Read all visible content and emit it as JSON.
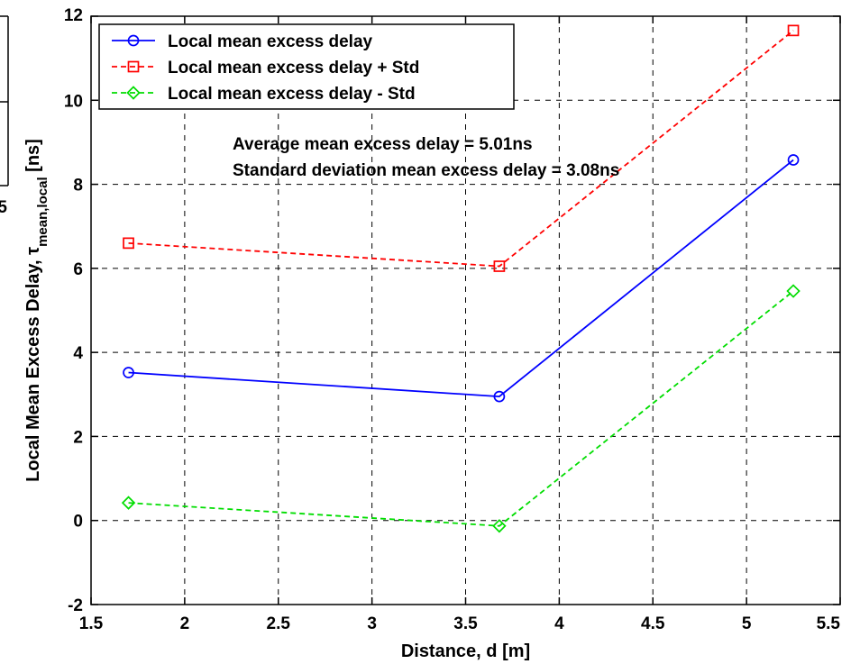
{
  "chart_data": {
    "type": "line",
    "title": "",
    "xlabel": "Distance, d [m]",
    "ylabel_main": "Local Mean Excess Delay,  τ",
    "ylabel_sub": "mean,local",
    "ylabel_unit": " [ns]",
    "xlim": [
      1.5,
      5.5
    ],
    "ylim": [
      -2,
      12
    ],
    "grid": true,
    "legend_position": "top-left",
    "xticks": [
      1.5,
      2,
      2.5,
      3,
      3.5,
      4,
      4.5,
      5,
      5.5
    ],
    "xtick_labels": [
      "1.5",
      "2",
      "2.5",
      "3",
      "3.5",
      "4",
      "4.5",
      "5",
      "5.5"
    ],
    "yticks": [
      -2,
      0,
      2,
      4,
      6,
      8,
      10,
      12
    ],
    "ytick_labels": [
      "-2",
      "0",
      "2",
      "4",
      "6",
      "8",
      "10",
      "12"
    ],
    "x": [
      1.7,
      3.68,
      5.25
    ],
    "series": [
      {
        "name": "Local mean excess delay",
        "values": [
          3.52,
          2.95,
          8.58
        ],
        "color": "#0000ff",
        "style": "solid",
        "marker": "circle"
      },
      {
        "name": "Local mean excess delay + Std",
        "values": [
          6.6,
          6.05,
          11.66
        ],
        "color": "#ff0000",
        "style": "dashed",
        "marker": "square"
      },
      {
        "name": "Local mean excess delay - Std",
        "values": [
          0.42,
          -0.13,
          5.46
        ],
        "color": "#00dd00",
        "style": "dashed",
        "marker": "diamond"
      }
    ],
    "annotations": [
      "Average mean excess delay = 5.01ns",
      "Standard deviation mean excess delay = 3.08ns"
    ]
  },
  "fragments": {
    "left_panel_tick": "5"
  }
}
